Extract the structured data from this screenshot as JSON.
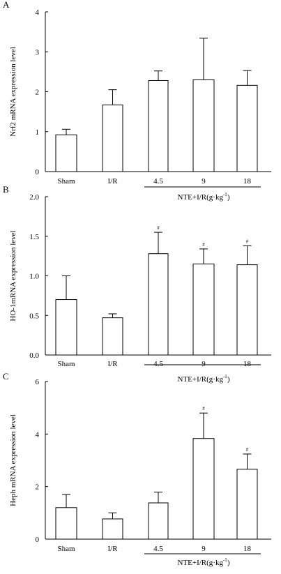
{
  "chart_data": [
    {
      "panel_label": "A",
      "type": "bar",
      "categories": [
        "Sham",
        "I/R",
        "4.5",
        "9",
        "18"
      ],
      "values": [
        0.92,
        1.67,
        2.28,
        2.3,
        2.16
      ],
      "errors": [
        0.14,
        0.38,
        0.24,
        1.04,
        0.37
      ],
      "markers": [
        "",
        "",
        "",
        "",
        ""
      ],
      "ylabel": "Nrf2 mRNA expression level",
      "ylim": [
        0,
        4
      ],
      "yticks": [
        "0",
        "1",
        "2",
        "3",
        "4"
      ],
      "group_label": "NTE+I/R(g·kg",
      "group_label_sup": "-1",
      "group_label_close": ")"
    },
    {
      "panel_label": "B",
      "type": "bar",
      "categories": [
        "Sham",
        "I/R",
        "4.5",
        "9",
        "18"
      ],
      "values": [
        0.7,
        0.47,
        1.28,
        1.15,
        1.14
      ],
      "errors": [
        0.3,
        0.05,
        0.27,
        0.19,
        0.24
      ],
      "markers": [
        "",
        "",
        "#",
        "#",
        "#"
      ],
      "ylabel": "HO-1mRNA expression level",
      "ylim": [
        0,
        2
      ],
      "yticks": [
        "0.0",
        "0.5",
        "1.0",
        "1.5",
        "2.0"
      ],
      "group_label": "NTE+I/R(g·kg",
      "group_label_sup": "-1",
      "group_label_close": ")"
    },
    {
      "panel_label": "C",
      "type": "bar",
      "categories": [
        "Sham",
        "I/R",
        "4.5",
        "9",
        "18"
      ],
      "values": [
        1.2,
        0.77,
        1.38,
        3.83,
        2.66
      ],
      "errors": [
        0.5,
        0.23,
        0.41,
        0.97,
        0.58
      ],
      "markers": [
        "",
        "",
        "",
        "#",
        "#"
      ],
      "ylabel": "Heph mRNA expression level",
      "ylim": [
        0,
        6
      ],
      "yticks": [
        "0",
        "2",
        "4",
        "6"
      ],
      "group_label": "NTE+I/R(g·kg",
      "group_label_sup": "-1",
      "group_label_close": ")"
    }
  ]
}
